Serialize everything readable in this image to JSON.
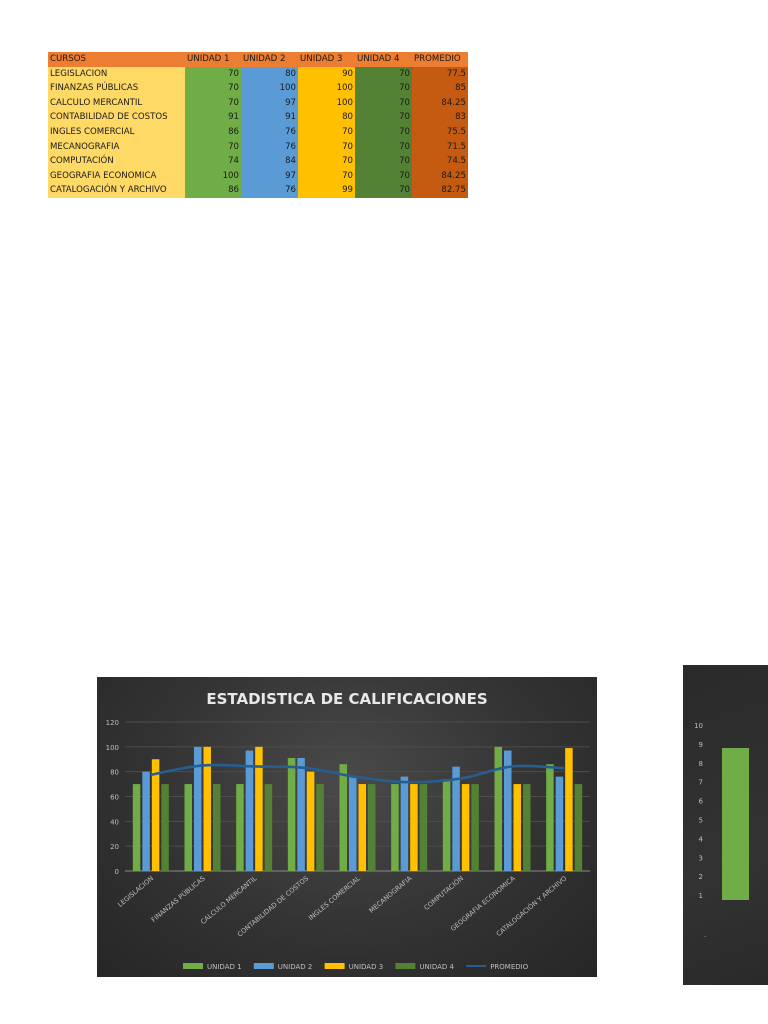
{
  "table": {
    "headers": [
      "CURSOS",
      "UNIDAD 1",
      "UNIDAD 2",
      "UNIDAD 3",
      "UNIDAD 4",
      "PROMEDIO"
    ],
    "rows": [
      [
        "LEGISLACION",
        "70",
        "80",
        "90",
        "70",
        "77.5"
      ],
      [
        "FINANZAS PÚBLICAS",
        "70",
        "100",
        "100",
        "70",
        "85"
      ],
      [
        "CALCULO MERCANTIL",
        "70",
        "97",
        "100",
        "70",
        "84.25"
      ],
      [
        "CONTABILIDAD DE COSTOS",
        "91",
        "91",
        "80",
        "70",
        "83"
      ],
      [
        "INGLES COMERCIAL",
        "86",
        "76",
        "70",
        "70",
        "75.5"
      ],
      [
        "MECANOGRAFIA",
        "70",
        "76",
        "70",
        "70",
        "71.5"
      ],
      [
        "COMPUTACIÓN",
        "74",
        "84",
        "70",
        "70",
        "74.5"
      ],
      [
        "GEOGRAFIA ECONOMICA",
        "100",
        "97",
        "70",
        "70",
        "84.25"
      ],
      [
        "CATALOGACIÓN Y ARCHIVO",
        "86",
        "76",
        "99",
        "70",
        "82.75"
      ]
    ],
    "colors": {
      "header": "#ed7d31",
      "cursos": "#ffd966",
      "unidad1": "#70ad47",
      "unidad2": "#5b9bd5",
      "unidad3": "#ffc000",
      "unidad4": "#548235",
      "promedio": "#c55a11"
    }
  },
  "chart_data": [
    {
      "type": "bar",
      "title": "ESTADISTICA DE CALIFICACIONES",
      "xlabel": "",
      "ylabel": "",
      "ylim": [
        0,
        120
      ],
      "yticks": [
        0,
        20,
        40,
        60,
        80,
        100,
        120
      ],
      "grid": true,
      "legend_position": "bottom",
      "categories": [
        "LEGISLACION",
        "FINANZAS PÚBLICAS",
        "CALCULO MERCANTIL",
        "CONTABILIDAD DE COSTOS",
        "INGLES COMERCIAL",
        "MECANOGRAFIA",
        "COMPUTACIÓN",
        "GEOGRAFIA ECONOMICA",
        "CATALOGACIÓN Y ARCHIVO"
      ],
      "series": [
        {
          "name": "UNIDAD 1",
          "type": "bar",
          "color": "#70ad47",
          "values": [
            70,
            70,
            70,
            91,
            86,
            70,
            74,
            100,
            86
          ]
        },
        {
          "name": "UNIDAD 2",
          "type": "bar",
          "color": "#5b9bd5",
          "values": [
            80,
            100,
            97,
            91,
            76,
            76,
            84,
            97,
            76
          ]
        },
        {
          "name": "UNIDAD 3",
          "type": "bar",
          "color": "#ffc000",
          "values": [
            90,
            100,
            100,
            80,
            70,
            70,
            70,
            70,
            99
          ]
        },
        {
          "name": "UNIDAD 4",
          "type": "bar",
          "color": "#548235",
          "values": [
            70,
            70,
            70,
            70,
            70,
            70,
            70,
            70,
            70
          ]
        },
        {
          "name": "PROMEDIO",
          "type": "line",
          "color": "#255e91",
          "values": [
            77.5,
            85,
            84.25,
            83,
            75.5,
            71.5,
            74.5,
            84.25,
            82.75
          ]
        }
      ]
    },
    {
      "type": "bar",
      "title": "",
      "ylim": [
        0,
        10
      ],
      "yticks": [
        1,
        2,
        3,
        4,
        5,
        6,
        7,
        8,
        9,
        10
      ],
      "categories": [
        "."
      ],
      "series": [
        {
          "name": "",
          "color": "#70ad47",
          "values": [
            8
          ]
        }
      ]
    }
  ]
}
